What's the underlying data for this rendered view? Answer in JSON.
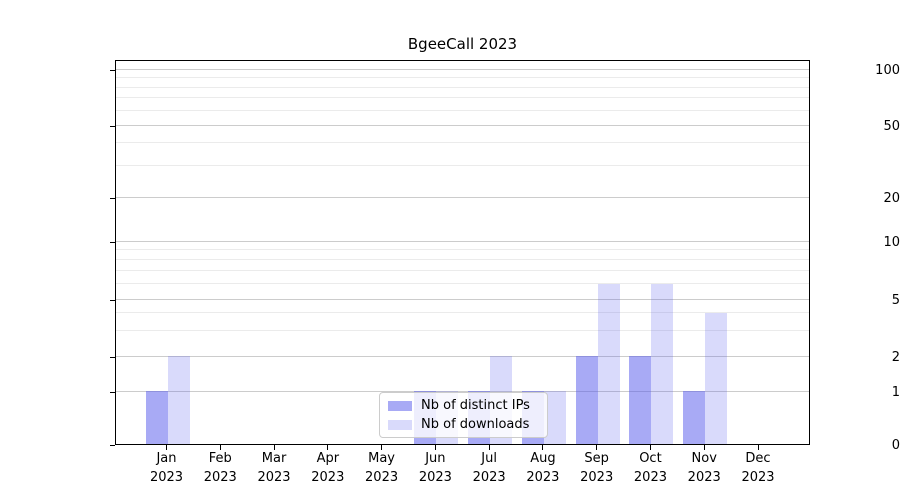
{
  "title": "BgeeCall 2023",
  "chart_data": {
    "type": "bar",
    "title": "BgeeCall 2023",
    "xlabel": "",
    "ylabel": "",
    "yscale": "log-like (0, then log spacing 1-100)",
    "grid": "horizontal-major-and-minor",
    "legend_position": "inside-bottom-center",
    "categories": [
      "Jan",
      "Feb",
      "Mar",
      "Apr",
      "May",
      "Jun",
      "Jul",
      "Aug",
      "Sep",
      "Oct",
      "Nov",
      "Dec"
    ],
    "x_tick_year": "2023",
    "y_major_ticks": [
      0,
      1,
      2,
      5,
      10,
      20,
      50,
      100
    ],
    "y_minor_ticks": [
      3,
      4,
      6,
      7,
      8,
      9,
      30,
      40,
      60,
      70,
      80,
      90
    ],
    "ylim": [
      0,
      120
    ],
    "series": [
      {
        "name": "Nb of distinct IPs",
        "key": "distinct-ips",
        "color": "rgba(81,85,235,0.5)",
        "values": [
          1,
          0,
          0,
          0,
          0,
          1,
          1,
          1,
          2,
          2,
          1,
          0
        ]
      },
      {
        "name": "Nb of downloads",
        "key": "downloads",
        "color": "rgba(81,85,235,0.22)",
        "values": [
          2,
          0,
          0,
          0,
          0,
          1,
          2,
          1,
          6,
          6,
          4,
          0
        ]
      }
    ]
  },
  "colors": {
    "major_grid": "#cccccc",
    "minor_grid": "#ebebeb",
    "axis": "#000000",
    "text": "#000000",
    "legend_border": "#cccccc"
  }
}
